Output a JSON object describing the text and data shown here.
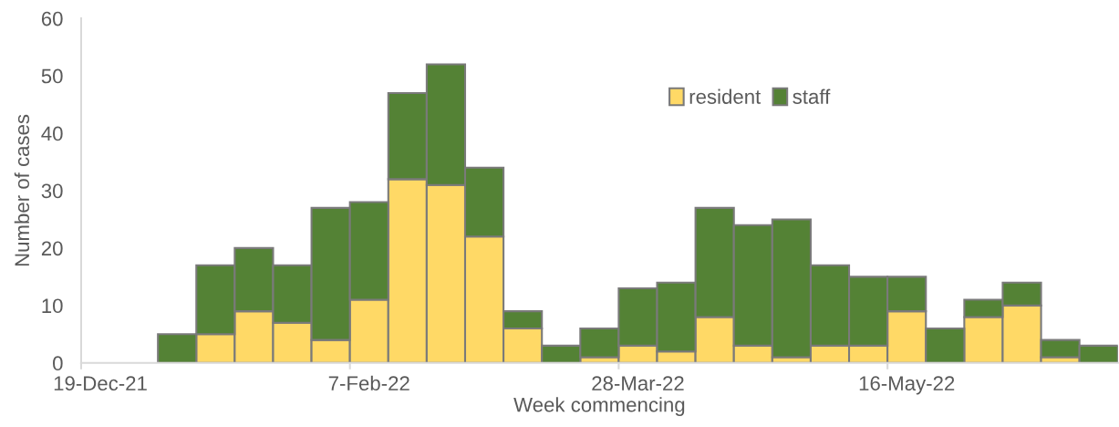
{
  "chart_data": {
    "type": "bar",
    "stacked": true,
    "xlabel": "Week commencing",
    "ylabel": "Number of cases",
    "categories": [
      "19-Dec-21",
      null,
      null,
      null,
      null,
      null,
      null,
      "7-Feb-22",
      null,
      null,
      null,
      null,
      null,
      null,
      "28-Mar-22",
      null,
      null,
      null,
      null,
      null,
      null,
      "16-May-22",
      null,
      null,
      null,
      null,
      null
    ],
    "series": [
      {
        "name": "resident",
        "color": "#ffd966",
        "values": [
          0,
          0,
          0,
          5,
          9,
          7,
          4,
          11,
          32,
          31,
          22,
          6,
          0,
          1,
          3,
          2,
          8,
          3,
          1,
          3,
          3,
          9,
          0,
          8,
          10,
          1,
          0
        ]
      },
      {
        "name": "staff",
        "color": "#548235",
        "values": [
          0,
          0,
          5,
          12,
          11,
          10,
          23,
          17,
          15,
          21,
          12,
          3,
          3,
          5,
          10,
          12,
          19,
          21,
          24,
          14,
          12,
          6,
          6,
          3,
          4,
          3,
          3
        ]
      }
    ],
    "ylim": [
      0,
      60
    ],
    "yticks": [
      0,
      10,
      20,
      30,
      40,
      50,
      60
    ],
    "legend": "top right"
  }
}
